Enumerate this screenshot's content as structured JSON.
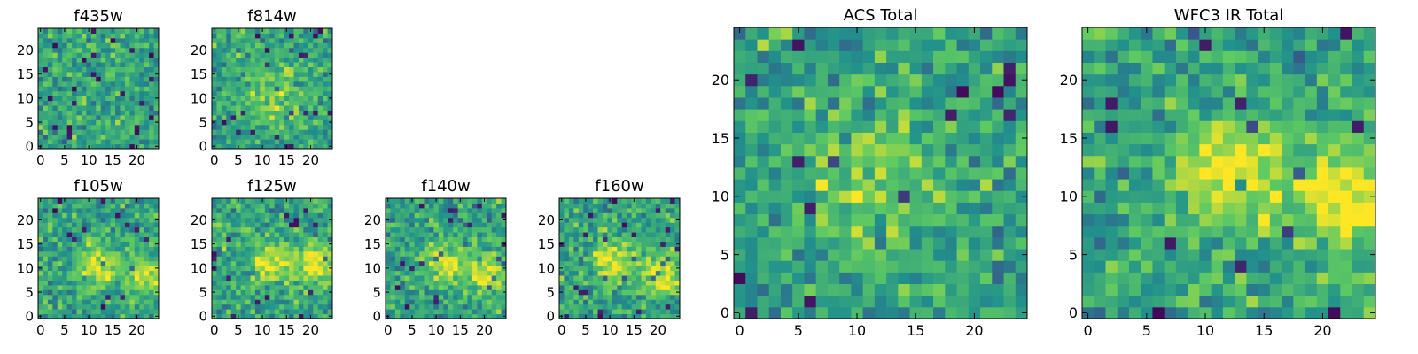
{
  "colormap": [
    "#440154",
    "#3b528b",
    "#21918c",
    "#5ec962",
    "#fde725"
  ],
  "chart_data": [
    {
      "type": "heatmap",
      "title": "f435w",
      "grid_size": 25,
      "x_ticks": [
        0,
        5,
        10,
        15,
        20
      ],
      "y_ticks": [
        0,
        5,
        10,
        15,
        20
      ],
      "xlim": [
        0,
        24
      ],
      "ylim": [
        0,
        24
      ],
      "grid": false,
      "seed": 11,
      "blobs": []
    },
    {
      "type": "heatmap",
      "title": "f814w",
      "grid_size": 25,
      "x_ticks": [
        0,
        5,
        10,
        15,
        20
      ],
      "y_ticks": [
        0,
        5,
        10,
        15,
        20
      ],
      "xlim": [
        0,
        24
      ],
      "ylim": [
        0,
        24
      ],
      "grid": false,
      "seed": 23,
      "blobs": [
        [
          12,
          11,
          0.25,
          4
        ]
      ]
    },
    {
      "type": "heatmap",
      "title": "f105w",
      "grid_size": 25,
      "x_ticks": [
        0,
        5,
        10,
        15,
        20
      ],
      "y_ticks": [
        0,
        5,
        10,
        15,
        20
      ],
      "xlim": [
        0,
        24
      ],
      "ylim": [
        0,
        24
      ],
      "grid": false,
      "seed": 37,
      "blobs": [
        [
          12,
          11,
          0.35,
          3
        ],
        [
          21,
          9,
          0.35,
          3
        ]
      ]
    },
    {
      "type": "heatmap",
      "title": "f125w",
      "grid_size": 25,
      "x_ticks": [
        0,
        5,
        10,
        15,
        20
      ],
      "y_ticks": [
        0,
        5,
        10,
        15,
        20
      ],
      "xlim": [
        0,
        24
      ],
      "ylim": [
        0,
        24
      ],
      "grid": false,
      "seed": 41,
      "blobs": [
        [
          12,
          11,
          0.35,
          3
        ],
        [
          21,
          11,
          0.4,
          3
        ]
      ]
    },
    {
      "type": "heatmap",
      "title": "f140w",
      "grid_size": 25,
      "x_ticks": [
        0,
        5,
        10,
        15,
        20
      ],
      "y_ticks": [
        0,
        5,
        10,
        15,
        20
      ],
      "xlim": [
        0,
        24
      ],
      "ylim": [
        0,
        24
      ],
      "grid": false,
      "seed": 53,
      "blobs": [
        [
          12,
          11,
          0.35,
          3
        ],
        [
          21,
          9,
          0.35,
          3
        ]
      ]
    },
    {
      "type": "heatmap",
      "title": "f160w",
      "grid_size": 25,
      "x_ticks": [
        0,
        5,
        10,
        15,
        20
      ],
      "y_ticks": [
        0,
        5,
        10,
        15,
        20
      ],
      "xlim": [
        0,
        24
      ],
      "ylim": [
        0,
        24
      ],
      "grid": false,
      "seed": 67,
      "blobs": [
        [
          11,
          11,
          0.4,
          3
        ],
        [
          21,
          9,
          0.4,
          3
        ]
      ]
    },
    {
      "type": "heatmap",
      "title": "ACS Total",
      "grid_size": 25,
      "x_ticks": [
        0,
        5,
        10,
        15,
        20
      ],
      "y_ticks": [
        0,
        5,
        10,
        15,
        20
      ],
      "xlim": [
        0,
        24
      ],
      "ylim": [
        0,
        24
      ],
      "grid": false,
      "seed": 79,
      "blobs": [
        [
          12,
          12,
          0.2,
          4
        ]
      ]
    },
    {
      "type": "heatmap",
      "title": "WFC3 IR Total",
      "grid_size": 25,
      "x_ticks": [
        0,
        5,
        10,
        15,
        20
      ],
      "y_ticks": [
        0,
        5,
        10,
        15,
        20
      ],
      "xlim": [
        0,
        24
      ],
      "ylim": [
        0,
        24
      ],
      "grid": false,
      "seed": 97,
      "blobs": [
        [
          12,
          12,
          0.45,
          3
        ],
        [
          22,
          10,
          0.45,
          3
        ]
      ]
    }
  ]
}
